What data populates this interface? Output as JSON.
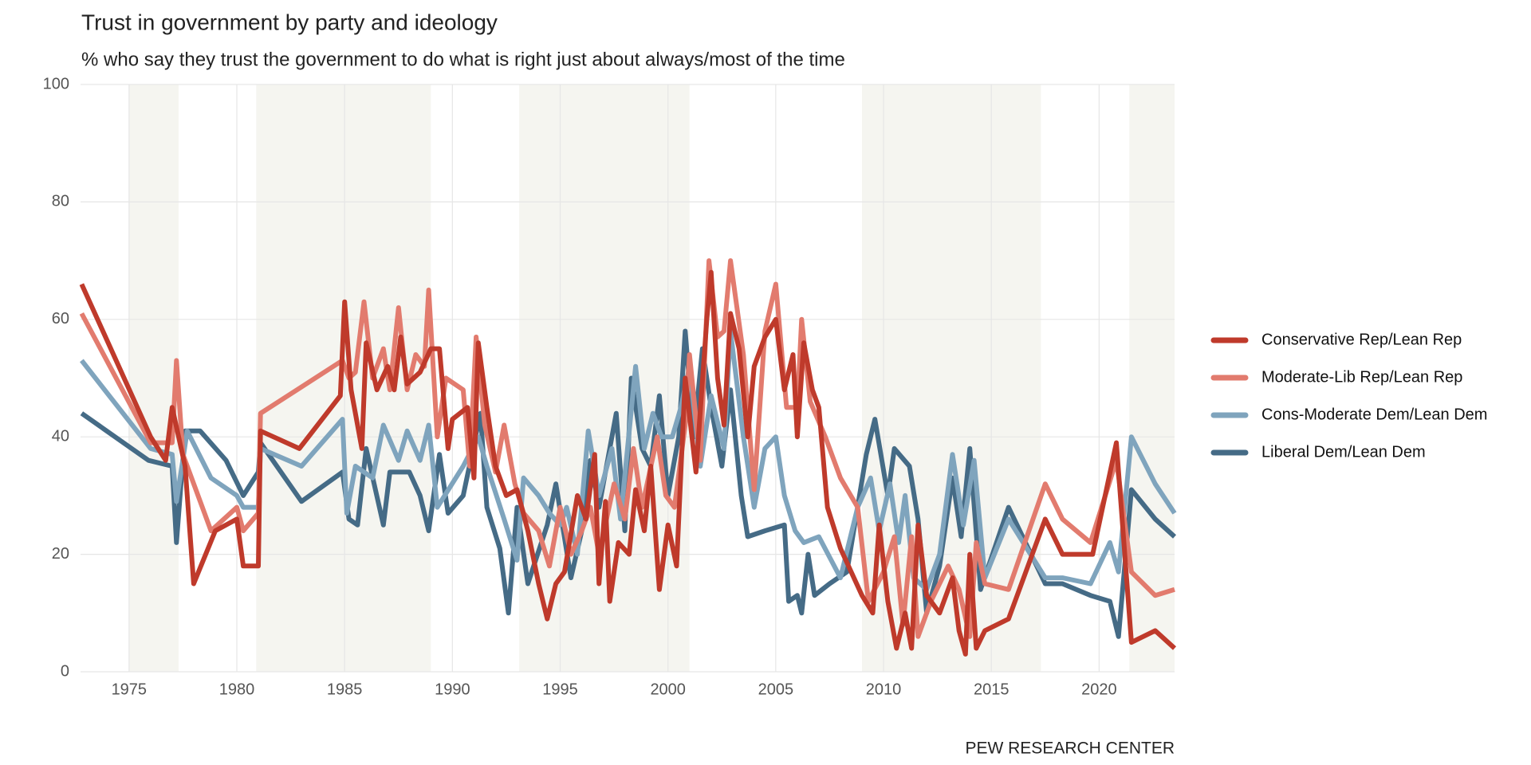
{
  "chart_data": {
    "type": "line",
    "title": "Trust in government by party and ideology",
    "subtitle": "% who say they trust the government to do what is right just about always/most of the time",
    "source": "PEW RESEARCH CENTER",
    "xlim": [
      1972.75,
      2023.5
    ],
    "xticks": [
      1975,
      1980,
      1985,
      1990,
      1995,
      2000,
      2005,
      2010,
      2015,
      2020
    ],
    "ylim": [
      0,
      100
    ],
    "yticks": [
      0,
      20,
      40,
      60,
      80,
      100
    ],
    "grid": true,
    "shaded_periods": [
      [
        1975,
        1977.3
      ],
      [
        1980.9,
        1989
      ],
      [
        1993.1,
        2001
      ],
      [
        2009,
        2017.3
      ],
      [
        2021.4,
        2023.5
      ]
    ],
    "shade_color": "#f5f5f0",
    "legend_position": "right",
    "series": [
      {
        "name": "Conservative Rep/Lean Rep",
        "color": "#bf3a2b",
        "x": [
          1972.8,
          1976,
          1976.7,
          1977,
          1977.6,
          1978,
          1979,
          1980,
          1980.3,
          1981,
          1981.1,
          1982.9,
          1984.8,
          1985,
          1985.3,
          1985.8,
          1986,
          1986.5,
          1987,
          1987.3,
          1987.6,
          1987.9,
          1988.5,
          1989,
          1989.4,
          1989.8,
          1990,
          1990.7,
          1991,
          1991.2,
          1991.6,
          1992,
          1992.5,
          1993,
          1993.5,
          1994,
          1994.4,
          1994.8,
          1995.2,
          1995.8,
          1996.2,
          1996.6,
          1996.8,
          1997.1,
          1997.3,
          1997.7,
          1998.2,
          1998.5,
          1998.9,
          1999.2,
          1999.6,
          2000,
          2000.4,
          2000.8,
          2001.3,
          2001.8,
          2002,
          2002.3,
          2002.6,
          2002.9,
          2003.3,
          2003.7,
          2004,
          2004.5,
          2005,
          2005.4,
          2005.8,
          2006,
          2006.3,
          2006.7,
          2007,
          2007.4,
          2008,
          2009,
          2009.5,
          2009.8,
          2010.2,
          2010.6,
          2011,
          2011.3,
          2011.6,
          2012,
          2012.6,
          2013.2,
          2013.5,
          2013.8,
          2014,
          2014.3,
          2014.7,
          2015.8,
          2017.5,
          2018.3,
          2019.7,
          2020.8,
          2021.5,
          2022.6,
          2023.5
        ],
        "values": [
          66,
          40,
          36,
          45,
          35,
          15,
          24,
          26,
          18,
          18,
          41,
          38,
          47,
          63,
          48,
          38,
          56,
          48,
          52,
          48,
          57,
          49,
          51,
          55,
          55,
          38,
          43,
          45,
          33,
          56,
          45,
          35,
          30,
          31,
          24,
          15,
          9,
          15,
          17,
          30,
          26,
          37,
          15,
          29,
          12,
          22,
          20,
          31,
          24,
          35,
          14,
          25,
          18,
          50,
          34,
          60,
          68,
          50,
          42,
          61,
          55,
          40,
          52,
          57,
          60,
          48,
          54,
          40,
          56,
          48,
          45,
          28,
          21,
          13,
          10,
          25,
          12,
          4,
          10,
          4,
          25,
          13,
          10,
          16,
          7,
          3,
          20,
          4,
          7,
          9,
          26,
          20,
          20,
          39,
          5,
          7,
          4
        ]
      },
      {
        "name": "Moderate-Lib Rep/Lean Rep",
        "color": "#e27b6e",
        "x": [
          1972.8,
          1976,
          1977,
          1977.2,
          1977.5,
          1978.8,
          1980,
          1980.3,
          1981,
          1981.1,
          1984.9,
          1985.2,
          1985.5,
          1985.9,
          1986.3,
          1986.8,
          1987.1,
          1987.5,
          1987.9,
          1988.3,
          1988.7,
          1988.9,
          1989.3,
          1989.7,
          1990.5,
          1990.8,
          1991.1,
          1991.5,
          1992,
          1992.4,
          1992.9,
          1993.3,
          1994,
          1994.5,
          1995,
          1995.5,
          1996,
          1996.4,
          1996.8,
          1997.5,
          1998,
          1998.4,
          1998.8,
          1999.5,
          1999.9,
          2000.3,
          2000.8,
          2001,
          2001.5,
          2001.9,
          2002.3,
          2002.6,
          2002.9,
          2003.5,
          2004,
          2004.5,
          2005,
          2005.5,
          2006,
          2006.2,
          2006.6,
          2007.3,
          2008,
          2008.8,
          2009.3,
          2010,
          2010.5,
          2010.9,
          2011.3,
          2011.6,
          2012.2,
          2013,
          2013.5,
          2014,
          2014.3,
          2014.7,
          2015.8,
          2017.5,
          2018.3,
          2019.6,
          2020.8,
          2021.5,
          2022.6,
          2023.5
        ],
        "values": [
          61,
          39,
          39,
          53,
          37,
          24,
          28,
          24,
          27,
          44,
          53,
          50,
          51,
          63,
          50,
          55,
          48,
          62,
          48,
          54,
          52,
          65,
          40,
          50,
          48,
          35,
          57,
          42,
          34,
          42,
          32,
          27,
          24,
          18,
          28,
          20,
          24,
          28,
          20,
          32,
          26,
          38,
          28,
          40,
          30,
          28,
          42,
          54,
          36,
          70,
          57,
          58,
          70,
          54,
          31,
          58,
          66,
          45,
          45,
          60,
          46,
          40,
          33,
          28,
          12,
          17,
          23,
          8,
          23,
          6,
          12,
          18,
          14,
          6,
          22,
          15,
          14,
          32,
          26,
          22,
          36,
          17,
          13,
          14
        ]
      },
      {
        "name": "Cons-Moderate Dem/Lean Dem",
        "color": "#7fa4bd",
        "x": [
          1972.8,
          1976,
          1977,
          1977.2,
          1977.7,
          1978.8,
          1980,
          1980.3,
          1981,
          1981.1,
          1983,
          1984.9,
          1985.1,
          1985.5,
          1986.3,
          1986.8,
          1987.5,
          1987.9,
          1988.5,
          1988.9,
          1989.3,
          1990.5,
          1991.2,
          1991.6,
          1992.4,
          1993,
          1993.3,
          1994,
          1994.5,
          1995,
          1995.3,
          1995.8,
          1996.3,
          1996.8,
          1997.4,
          1997.8,
          1998.5,
          1998.9,
          1999.3,
          1999.7,
          2000.2,
          2000.6,
          2001,
          2001.5,
          2002,
          2002.6,
          2002.9,
          2003.5,
          2004,
          2004.5,
          2005,
          2005.4,
          2005.9,
          2006.3,
          2007,
          2008,
          2008.8,
          2009.4,
          2009.8,
          2010.3,
          2010.7,
          2011,
          2011.4,
          2012,
          2012.6,
          2013.2,
          2013.7,
          2014.2,
          2014.7,
          2015.8,
          2017.5,
          2018.3,
          2019.6,
          2020.5,
          2020.9,
          2021.5,
          2022.6,
          2023.5
        ],
        "values": [
          53,
          38,
          37,
          29,
          41,
          33,
          30,
          28,
          28,
          38,
          35,
          43,
          27,
          35,
          33,
          42,
          36,
          41,
          36,
          42,
          28,
          35,
          40,
          35,
          26,
          19,
          33,
          30,
          27,
          25,
          28,
          20,
          41,
          30,
          38,
          26,
          52,
          38,
          44,
          40,
          40,
          45,
          52,
          35,
          47,
          38,
          58,
          40,
          28,
          38,
          40,
          30,
          24,
          22,
          23,
          16,
          28,
          33,
          24,
          32,
          22,
          30,
          16,
          14,
          20,
          37,
          25,
          36,
          16,
          26,
          16,
          16,
          15,
          22,
          17,
          40,
          32,
          27
        ]
      },
      {
        "name": "Liberal Dem/Lean Dem",
        "color": "#456b86",
        "x": [
          1972.8,
          1975.9,
          1977,
          1977.2,
          1977.6,
          1978.3,
          1979.5,
          1980.3,
          1981,
          1981.1,
          1983,
          1984.9,
          1985.2,
          1985.6,
          1986,
          1986.8,
          1987.1,
          1988,
          1988.5,
          1988.9,
          1989.4,
          1989.8,
          1990.5,
          1991.3,
          1991.6,
          1992.2,
          1992.6,
          1993,
          1993.5,
          1994.4,
          1994.8,
          1995.5,
          1996,
          1996.4,
          1996.8,
          1997.6,
          1998,
          1998.3,
          1998.8,
          1999.2,
          1999.6,
          2000,
          2000.5,
          2000.8,
          2001.2,
          2001.6,
          2002,
          2002.5,
          2002.9,
          2003.4,
          2003.7,
          2004.5,
          2005.4,
          2005.6,
          2006,
          2006.2,
          2006.5,
          2006.8,
          2007.5,
          2008.3,
          2009.2,
          2009.6,
          2010.2,
          2010.5,
          2011.2,
          2011.6,
          2012,
          2012.6,
          2013.2,
          2013.6,
          2014,
          2014.5,
          2015.8,
          2017.5,
          2018.3,
          2019.6,
          2020.5,
          2020.9,
          2021.5,
          2022.6,
          2023.5
        ],
        "values": [
          44,
          36,
          35,
          22,
          41,
          41,
          36,
          30,
          34,
          39,
          29,
          34,
          26,
          25,
          38,
          25,
          34,
          34,
          30,
          24,
          37,
          27,
          30,
          44,
          28,
          21,
          10,
          28,
          15,
          25,
          32,
          16,
          24,
          36,
          28,
          44,
          24,
          50,
          38,
          35,
          47,
          30,
          40,
          58,
          40,
          55,
          45,
          35,
          48,
          30,
          23,
          24,
          25,
          12,
          13,
          10,
          20,
          13,
          15,
          17,
          37,
          43,
          30,
          38,
          35,
          26,
          10,
          18,
          33,
          23,
          38,
          14,
          28,
          15,
          15,
          13,
          12,
          6,
          31,
          26,
          23
        ]
      }
    ]
  }
}
